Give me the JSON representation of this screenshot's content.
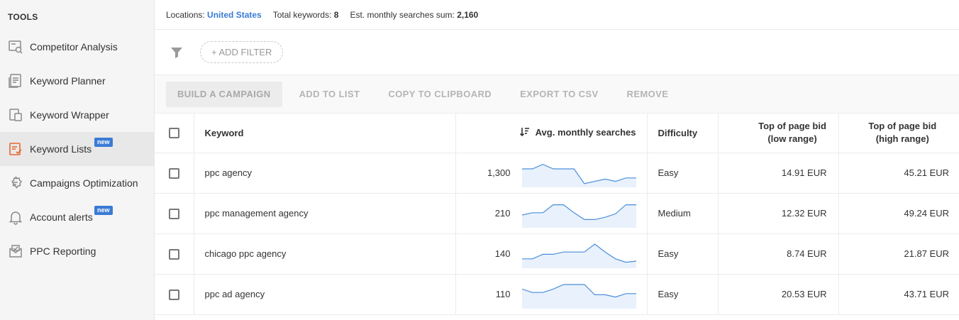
{
  "sidebar": {
    "heading": "TOOLS",
    "items": [
      {
        "label": "Competitor Analysis",
        "icon": "competitor-analysis-icon"
      },
      {
        "label": "Keyword Planner",
        "icon": "keyword-planner-icon"
      },
      {
        "label": "Keyword Wrapper",
        "icon": "keyword-wrapper-icon"
      },
      {
        "label": "Keyword Lists",
        "icon": "keyword-lists-icon",
        "badge": "new",
        "active": true
      },
      {
        "label": "Campaigns Optimization",
        "icon": "campaigns-optimization-icon"
      },
      {
        "label": "Account alerts",
        "icon": "bell-icon",
        "badge": "new"
      },
      {
        "label": "PPC Reporting",
        "icon": "ppc-reporting-icon"
      }
    ]
  },
  "info": {
    "locations_label": "Locations:",
    "locations_value": "United States",
    "total_label": "Total keywords:",
    "total_value": "8",
    "sum_label": "Est. monthly searches sum:",
    "sum_value": "2,160"
  },
  "filter": {
    "add_label": "+ ADD FILTER"
  },
  "actions": {
    "build": "BUILD A CAMPAIGN",
    "add_list": "ADD TO LIST",
    "copy": "COPY TO CLIPBOARD",
    "export": "EXPORT TO CSV",
    "remove": "REMOVE"
  },
  "table": {
    "headers": {
      "keyword": "Keyword",
      "avg": "Avg. monthly searches",
      "difficulty": "Difficulty",
      "low_line1": "Top of page bid",
      "low_line2": "(low range)",
      "high_line1": "Top of page bid",
      "high_line2": "(high range)"
    },
    "rows": [
      {
        "keyword": "ppc agency",
        "avg": "1,300",
        "difficulty": "Easy",
        "low": "14.91 EUR",
        "high": "45.21 EUR",
        "trend": [
          0.75,
          0.75,
          0.95,
          0.75,
          0.75,
          0.75,
          0.1,
          0.2,
          0.3,
          0.2,
          0.35,
          0.35
        ]
      },
      {
        "keyword": "ppc management agency",
        "avg": "210",
        "difficulty": "Medium",
        "low": "12.32 EUR",
        "high": "49.24 EUR",
        "trend": [
          0.5,
          0.6,
          0.6,
          0.95,
          0.95,
          0.6,
          0.3,
          0.3,
          0.4,
          0.55,
          0.95,
          0.95
        ]
      },
      {
        "keyword": "chicago ppc agency",
        "avg": "140",
        "difficulty": "Easy",
        "low": "8.74 EUR",
        "high": "21.87 EUR",
        "trend": [
          0.35,
          0.35,
          0.55,
          0.55,
          0.65,
          0.65,
          0.65,
          1.0,
          0.65,
          0.35,
          0.2,
          0.25
        ]
      },
      {
        "keyword": "ppc ad agency",
        "avg": "110",
        "difficulty": "Easy",
        "low": "20.53 EUR",
        "high": "43.71 EUR",
        "trend": [
          0.8,
          0.65,
          0.65,
          0.8,
          1.0,
          1.0,
          1.0,
          0.55,
          0.55,
          0.45,
          0.6,
          0.6
        ]
      }
    ]
  }
}
